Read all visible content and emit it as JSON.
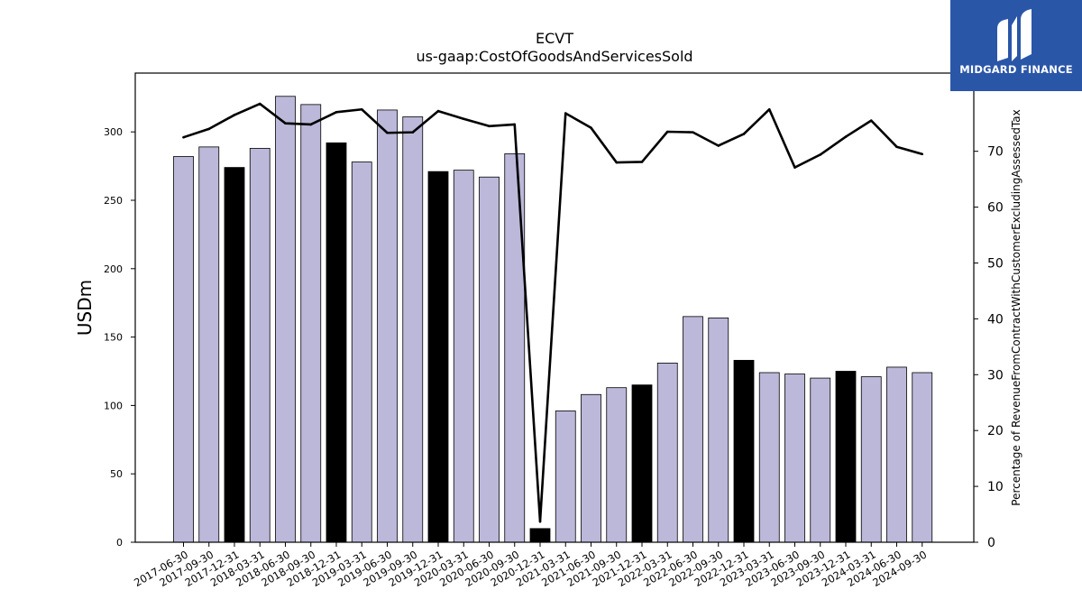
{
  "brand": {
    "name": "MIDGARD FINANCE",
    "color": "#2a56a8"
  },
  "chart_data": {
    "type": "bar",
    "title": "ECVT",
    "subtitle": "us-gaap:CostOfGoodsAndServicesSold",
    "ylabel": "USDm",
    "y2label": "Percentage of RevenueFromContractWithCustomerExcludingAssessedTax",
    "ylim": [
      0,
      343
    ],
    "y2lim": [
      0,
      84
    ],
    "yticks": [
      0,
      50,
      100,
      150,
      200,
      250,
      300
    ],
    "y2ticks": [
      0,
      10,
      20,
      30,
      40,
      50,
      60,
      70
    ],
    "bar_color": "#bcb8d9",
    "highlight_color": "#000000",
    "line_color": "#000000",
    "categories": [
      "2017-06-30",
      "2017-09-30",
      "2017-12-31",
      "2018-03-31",
      "2018-06-30",
      "2018-09-30",
      "2018-12-31",
      "2019-03-31",
      "2019-06-30",
      "2019-09-30",
      "2019-12-31",
      "2020-03-31",
      "2020-06-30",
      "2020-09-30",
      "2020-12-31",
      "2021-03-31",
      "2021-06-30",
      "2021-09-30",
      "2021-12-31",
      "2022-03-31",
      "2022-06-30",
      "2022-09-30",
      "2022-12-31",
      "2023-03-31",
      "2023-06-30",
      "2023-09-30",
      "2023-12-31",
      "2024-03-31",
      "2024-06-30",
      "2024-09-30"
    ],
    "series": [
      {
        "type": "bar",
        "values": [
          282,
          289,
          274,
          288,
          326,
          320,
          292,
          278,
          316,
          311,
          271,
          272,
          267,
          284,
          10,
          96,
          108,
          113,
          115,
          131,
          165,
          164,
          133,
          124,
          123,
          120,
          125,
          121,
          128,
          124
        ],
        "highlight": [
          false,
          false,
          true,
          false,
          false,
          false,
          true,
          false,
          false,
          false,
          true,
          false,
          false,
          false,
          true,
          false,
          false,
          false,
          true,
          false,
          false,
          false,
          true,
          false,
          false,
          false,
          true,
          false,
          false,
          false
        ]
      },
      {
        "type": "line",
        "axis": "right",
        "values": [
          72.5,
          74,
          76.5,
          78.5,
          75,
          74.8,
          77,
          77.5,
          73.3,
          73.4,
          77.2,
          75.8,
          74.5,
          74.8,
          3.7,
          76.8,
          74.2,
          68,
          68.1,
          73.5,
          73.4,
          71,
          73.1,
          77.5,
          67.1,
          69.4,
          72.6,
          75.5,
          70.8,
          69.5
        ]
      }
    ]
  }
}
